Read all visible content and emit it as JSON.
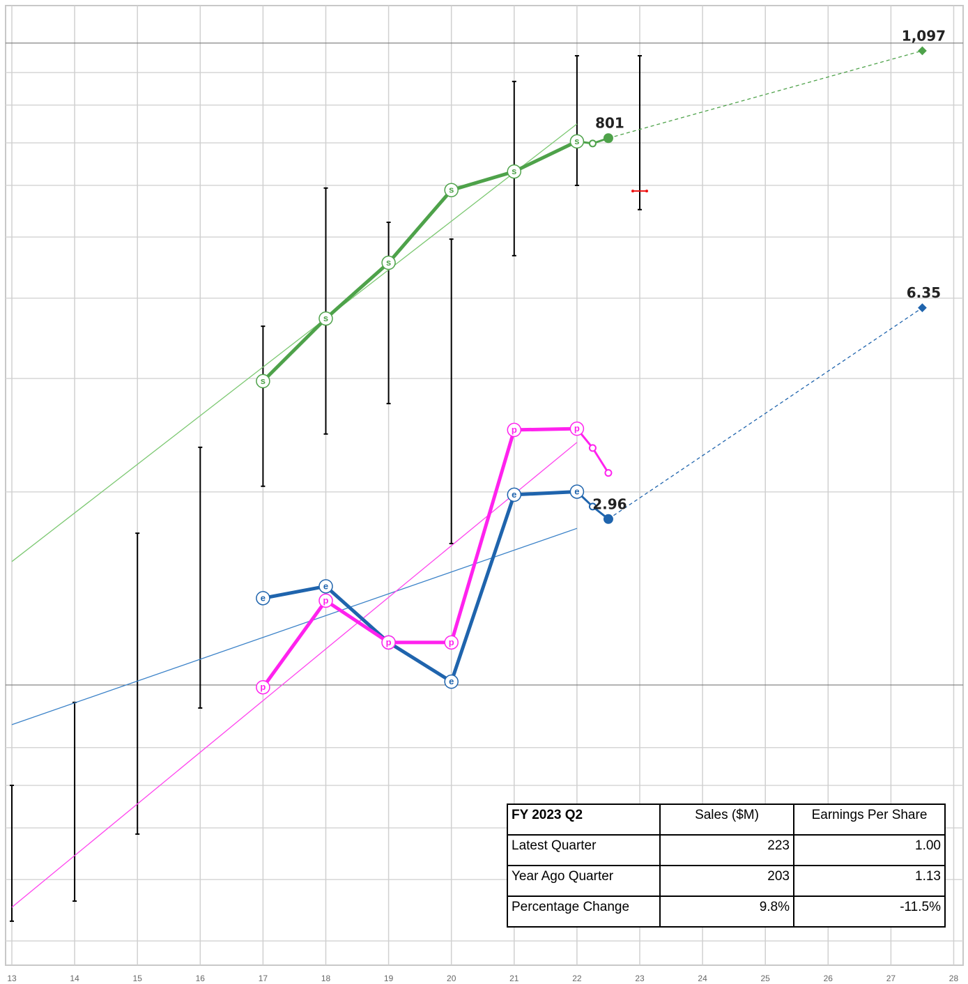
{
  "chart_data": {
    "type": "line",
    "xlim": [
      12.9,
      28.15
    ],
    "xticks": [
      13,
      14,
      15,
      16,
      17,
      18,
      19,
      20,
      21,
      22,
      23,
      24,
      25,
      26,
      27,
      28
    ],
    "ylim": [
      -2000,
      1250
    ],
    "y2lim": [
      -4.2,
      11.2
    ],
    "hgrid": [
      1023,
      913,
      785,
      641,
      466,
      259,
      -13,
      -397,
      -1263,
      -1391,
      -1535,
      -1710,
      -1918
    ],
    "reference_lines": [
      1123,
      -1051
    ],
    "ranges": {
      "x": [
        13,
        14,
        15,
        16,
        17,
        18,
        19,
        20,
        21,
        22,
        23
      ],
      "low": [
        -1851,
        -1783,
        -1556,
        -1129,
        -378,
        -201,
        -98,
        -572,
        403,
        641,
        559
      ],
      "high": [
        -1391,
        -1110,
        -537,
        -246,
        164,
        632,
        516,
        459,
        993,
        1080,
        1080
      ],
      "color": "#000000"
    },
    "range_marker": {
      "x": 23,
      "value": 622,
      "color": "#ee1111"
    },
    "series": [
      {
        "marker": "s",
        "color": "#4ea24a",
        "trend_color": "#7cc872",
        "axis": "y",
        "x": [
          17,
          18,
          19,
          20,
          21,
          22
        ],
        "values": [
          -22,
          190,
          379,
          625,
          688,
          790
        ],
        "tail_x": [
          22.25
        ],
        "tail_values": [
          783
        ],
        "latest": {
          "x": 22.5,
          "value": 801
        },
        "projection": {
          "x": 27.5,
          "value": 1097,
          "value_label": "1,097"
        },
        "trend": {
          "x": [
            13,
            22
          ],
          "values": [
            -633,
            849
          ]
        }
      },
      {
        "marker": "e",
        "color": "#1f64ad",
        "trend_color": "#3b82c8",
        "axis": "y2",
        "x": [
          17,
          18,
          19,
          20,
          21,
          22
        ],
        "values": [
          1.69,
          1.88,
          0.98,
          0.35,
          3.35,
          3.4
        ],
        "tail_x": [
          22.25
        ],
        "tail_values": [
          3.16
        ],
        "latest": {
          "x": 22.5,
          "value": 2.96
        },
        "projection": {
          "x": 27.5,
          "value": 6.35
        },
        "trend": {
          "x": [
            13,
            22
          ],
          "values": [
            -0.34,
            2.81
          ]
        }
      },
      {
        "marker": "p",
        "color": "#ff22ee",
        "trend_color": "#ff44ee",
        "axis": "y2",
        "x": [
          17,
          18,
          19,
          20,
          21,
          22
        ],
        "values": [
          0.26,
          1.65,
          0.98,
          0.98,
          4.39,
          4.41
        ],
        "tail_x": [
          22.25,
          22.5
        ],
        "tail_values": [
          4.1,
          3.7
        ],
        "trend": {
          "x": [
            13,
            22
          ],
          "values": [
            -3.27,
            4.19
          ]
        }
      }
    ]
  },
  "table": {
    "header": [
      "FY 2023 Q2",
      "Sales ($M)",
      "Earnings Per Share"
    ],
    "rows": [
      [
        "Latest Quarter",
        "223",
        "1.00"
      ],
      [
        "Year Ago Quarter",
        "203",
        "1.13"
      ],
      [
        "Percentage Change",
        "9.8%",
        "-11.5%"
      ]
    ]
  }
}
